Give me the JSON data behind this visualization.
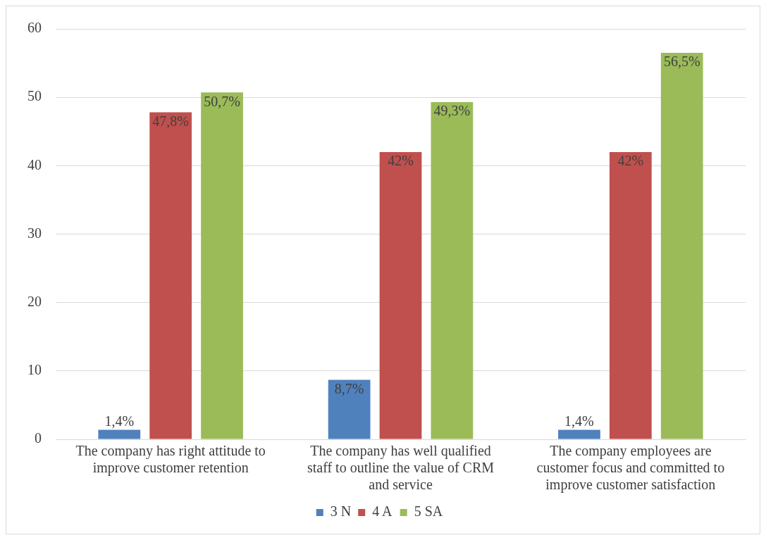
{
  "chart_data": {
    "type": "bar",
    "categories": [
      "The company has right attitude to improve customer retention",
      "The company has well qualified staff to outline the value of CRM and service",
      "The company employees are customer focus and committed to improve customer satisfaction"
    ],
    "series": [
      {
        "name": "3 N",
        "color": "#4f81bd",
        "values": [
          1.4,
          8.7,
          1.4
        ],
        "value_labels": [
          "1,4%",
          "8,7%",
          "1,4%"
        ]
      },
      {
        "name": "4 A",
        "color": "#c0504d",
        "values": [
          47.8,
          42,
          42
        ],
        "value_labels": [
          "47,8%",
          "42%",
          "42%"
        ]
      },
      {
        "name": "5 SA",
        "color": "#9bbb59",
        "values": [
          50.7,
          49.3,
          56.5
        ],
        "value_labels": [
          "50,7%",
          "49,3%",
          "56,5%"
        ]
      }
    ],
    "ylim": [
      0,
      60
    ],
    "yticks": [
      0,
      10,
      20,
      30,
      40,
      50,
      60
    ],
    "grid": "y",
    "legend": "bottom"
  }
}
